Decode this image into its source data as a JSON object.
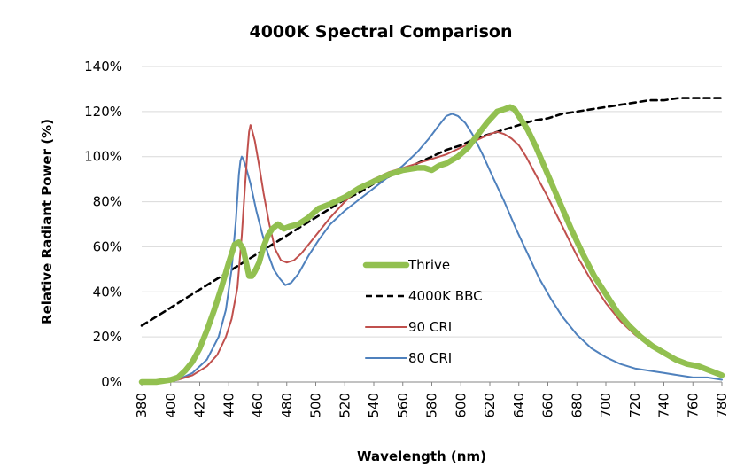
{
  "chart_data": {
    "type": "line",
    "title": "4000K Spectral Comparison",
    "xlabel": "Wavelength (nm)",
    "ylabel": "Relative Radiant Power (%)",
    "xlim": [
      380,
      780
    ],
    "ylim": [
      0,
      140
    ],
    "x_ticks": [
      380,
      400,
      420,
      440,
      460,
      480,
      500,
      520,
      540,
      560,
      580,
      600,
      620,
      640,
      660,
      680,
      700,
      720,
      740,
      760,
      780
    ],
    "x_tick_labels": [
      "380",
      "400",
      "420",
      "440",
      "460",
      "480",
      "500",
      "520",
      "540",
      "560",
      "580",
      "600",
      "620",
      "640",
      "660",
      "680",
      "700",
      "720",
      "740",
      "760",
      "780"
    ],
    "y_ticks": [
      0,
      20,
      40,
      60,
      80,
      100,
      120,
      140
    ],
    "y_tick_labels": [
      "0%",
      "20%",
      "40%",
      "60%",
      "80%",
      "100%",
      "120%",
      "140%"
    ],
    "grid": "horizontal",
    "legend_position": "center",
    "series": [
      {
        "name": "Thrive",
        "color": "#92c050",
        "style": "thick",
        "points": [
          [
            380,
            0
          ],
          [
            390,
            0
          ],
          [
            400,
            1
          ],
          [
            405,
            2
          ],
          [
            410,
            5
          ],
          [
            415,
            9
          ],
          [
            420,
            15
          ],
          [
            425,
            23
          ],
          [
            430,
            32
          ],
          [
            435,
            42
          ],
          [
            440,
            53
          ],
          [
            444,
            61
          ],
          [
            447,
            62
          ],
          [
            450,
            59
          ],
          [
            452,
            53
          ],
          [
            454,
            47
          ],
          [
            456,
            47
          ],
          [
            458,
            49
          ],
          [
            461,
            53
          ],
          [
            464,
            60
          ],
          [
            467,
            65
          ],
          [
            470,
            68
          ],
          [
            474,
            70
          ],
          [
            478,
            68
          ],
          [
            482,
            69
          ],
          [
            488,
            70
          ],
          [
            495,
            73
          ],
          [
            502,
            77
          ],
          [
            510,
            79
          ],
          [
            520,
            82
          ],
          [
            530,
            86
          ],
          [
            540,
            89
          ],
          [
            550,
            92
          ],
          [
            560,
            94
          ],
          [
            570,
            95
          ],
          [
            575,
            95
          ],
          [
            580,
            94
          ],
          [
            585,
            96
          ],
          [
            590,
            97
          ],
          [
            598,
            100
          ],
          [
            605,
            104
          ],
          [
            612,
            110
          ],
          [
            618,
            115
          ],
          [
            625,
            120
          ],
          [
            630,
            121
          ],
          [
            634,
            122
          ],
          [
            637,
            121
          ],
          [
            641,
            117
          ],
          [
            646,
            112
          ],
          [
            652,
            104
          ],
          [
            660,
            92
          ],
          [
            668,
            80
          ],
          [
            676,
            68
          ],
          [
            684,
            57
          ],
          [
            692,
            47
          ],
          [
            700,
            39
          ],
          [
            708,
            31
          ],
          [
            716,
            25
          ],
          [
            724,
            20
          ],
          [
            732,
            16
          ],
          [
            740,
            13
          ],
          [
            748,
            10
          ],
          [
            756,
            8
          ],
          [
            764,
            7
          ],
          [
            772,
            5
          ],
          [
            780,
            3
          ]
        ]
      },
      {
        "name": "4000K BBC",
        "color": "#000000",
        "style": "dashed",
        "points": [
          [
            380,
            25
          ],
          [
            390,
            29
          ],
          [
            400,
            33
          ],
          [
            410,
            37
          ],
          [
            420,
            41
          ],
          [
            430,
            45
          ],
          [
            440,
            49
          ],
          [
            450,
            53
          ],
          [
            460,
            57
          ],
          [
            470,
            61
          ],
          [
            480,
            65
          ],
          [
            490,
            69
          ],
          [
            500,
            73
          ],
          [
            510,
            77
          ],
          [
            520,
            81
          ],
          [
            530,
            84
          ],
          [
            540,
            88
          ],
          [
            550,
            91
          ],
          [
            560,
            94
          ],
          [
            570,
            97
          ],
          [
            580,
            100
          ],
          [
            590,
            103
          ],
          [
            600,
            105
          ],
          [
            610,
            108
          ],
          [
            620,
            110
          ],
          [
            630,
            112
          ],
          [
            640,
            114
          ],
          [
            650,
            116
          ],
          [
            660,
            117
          ],
          [
            670,
            119
          ],
          [
            680,
            120
          ],
          [
            690,
            121
          ],
          [
            700,
            122
          ],
          [
            710,
            123
          ],
          [
            720,
            124
          ],
          [
            730,
            125
          ],
          [
            740,
            125
          ],
          [
            750,
            126
          ],
          [
            760,
            126
          ],
          [
            770,
            126
          ],
          [
            780,
            126
          ]
        ]
      },
      {
        "name": "90 CRI",
        "color": "#c0504d",
        "style": "solid",
        "points": [
          [
            380,
            0
          ],
          [
            395,
            0
          ],
          [
            405,
            1
          ],
          [
            415,
            3
          ],
          [
            425,
            7
          ],
          [
            432,
            12
          ],
          [
            438,
            20
          ],
          [
            442,
            28
          ],
          [
            446,
            42
          ],
          [
            449,
            65
          ],
          [
            451,
            85
          ],
          [
            453,
            103
          ],
          [
            454,
            111
          ],
          [
            455,
            114
          ],
          [
            456,
            112
          ],
          [
            458,
            107
          ],
          [
            461,
            96
          ],
          [
            464,
            84
          ],
          [
            468,
            70
          ],
          [
            472,
            59
          ],
          [
            476,
            54
          ],
          [
            480,
            53
          ],
          [
            485,
            54
          ],
          [
            490,
            57
          ],
          [
            500,
            65
          ],
          [
            510,
            73
          ],
          [
            520,
            80
          ],
          [
            530,
            86
          ],
          [
            540,
            90
          ],
          [
            550,
            93
          ],
          [
            560,
            95
          ],
          [
            570,
            97
          ],
          [
            580,
            99
          ],
          [
            590,
            101
          ],
          [
            600,
            104
          ],
          [
            610,
            107
          ],
          [
            620,
            110
          ],
          [
            625,
            111
          ],
          [
            630,
            110
          ],
          [
            635,
            108
          ],
          [
            640,
            105
          ],
          [
            645,
            100
          ],
          [
            650,
            94
          ],
          [
            660,
            82
          ],
          [
            670,
            69
          ],
          [
            680,
            56
          ],
          [
            690,
            45
          ],
          [
            700,
            35
          ],
          [
            710,
            27
          ],
          [
            720,
            21
          ],
          [
            730,
            16
          ],
          [
            740,
            12
          ],
          [
            750,
            9
          ],
          [
            760,
            7
          ],
          [
            770,
            5
          ],
          [
            780,
            3
          ]
        ]
      },
      {
        "name": "80 CRI",
        "color": "#4f81bd",
        "style": "solid",
        "points": [
          [
            380,
            0
          ],
          [
            395,
            0
          ],
          [
            405,
            1
          ],
          [
            415,
            4
          ],
          [
            425,
            10
          ],
          [
            433,
            20
          ],
          [
            438,
            32
          ],
          [
            442,
            50
          ],
          [
            445,
            72
          ],
          [
            447,
            92
          ],
          [
            448,
            98
          ],
          [
            449,
            100
          ],
          [
            450,
            99
          ],
          [
            452,
            95
          ],
          [
            455,
            88
          ],
          [
            459,
            76
          ],
          [
            463,
            66
          ],
          [
            467,
            57
          ],
          [
            471,
            50
          ],
          [
            475,
            46
          ],
          [
            479,
            43
          ],
          [
            483,
            44
          ],
          [
            488,
            48
          ],
          [
            495,
            56
          ],
          [
            502,
            63
          ],
          [
            510,
            70
          ],
          [
            520,
            76
          ],
          [
            530,
            81
          ],
          [
            540,
            86
          ],
          [
            550,
            91
          ],
          [
            560,
            96
          ],
          [
            570,
            102
          ],
          [
            578,
            108
          ],
          [
            585,
            114
          ],
          [
            590,
            118
          ],
          [
            594,
            119
          ],
          [
            598,
            118
          ],
          [
            603,
            115
          ],
          [
            608,
            110
          ],
          [
            615,
            101
          ],
          [
            622,
            91
          ],
          [
            630,
            80
          ],
          [
            638,
            68
          ],
          [
            646,
            57
          ],
          [
            654,
            46
          ],
          [
            662,
            37
          ],
          [
            670,
            29
          ],
          [
            680,
            21
          ],
          [
            690,
            15
          ],
          [
            700,
            11
          ],
          [
            710,
            8
          ],
          [
            720,
            6
          ],
          [
            730,
            5
          ],
          [
            740,
            4
          ],
          [
            750,
            3
          ],
          [
            760,
            2
          ],
          [
            770,
            2
          ],
          [
            780,
            1
          ]
        ]
      }
    ]
  }
}
